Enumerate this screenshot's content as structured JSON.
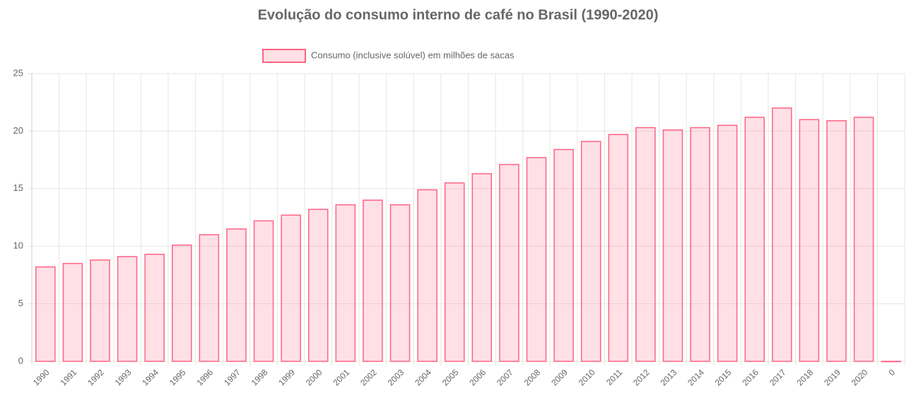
{
  "chart_data": {
    "type": "bar",
    "title": "Evolução do consumo interno de café no Brasil (1990-2020)",
    "legend": "Consumo (inclusive solúvel) em milhões de sacas",
    "categories": [
      "1990",
      "1991",
      "1992",
      "1993",
      "1994",
      "1995",
      "1996",
      "1997",
      "1998",
      "1999",
      "2000",
      "2001",
      "2002",
      "2003",
      "2004",
      "2005",
      "2006",
      "2007",
      "2008",
      "2009",
      "2010",
      "2011",
      "2012",
      "2013",
      "2014",
      "2015",
      "2016",
      "2017",
      "2018",
      "2019",
      "2020",
      "0"
    ],
    "values": [
      8.2,
      8.5,
      8.8,
      9.1,
      9.3,
      10.1,
      11.0,
      11.5,
      12.2,
      12.7,
      13.2,
      13.6,
      14.0,
      13.6,
      14.9,
      15.5,
      16.3,
      17.1,
      17.7,
      18.4,
      19.1,
      19.7,
      20.3,
      20.1,
      20.3,
      20.5,
      21.2,
      22.0,
      21.0,
      20.9,
      21.2,
      0
    ],
    "color": "#ff6384",
    "ylim": [
      0,
      25
    ],
    "yticks": [
      0,
      5,
      10,
      15,
      20,
      25
    ],
    "grid": true
  }
}
